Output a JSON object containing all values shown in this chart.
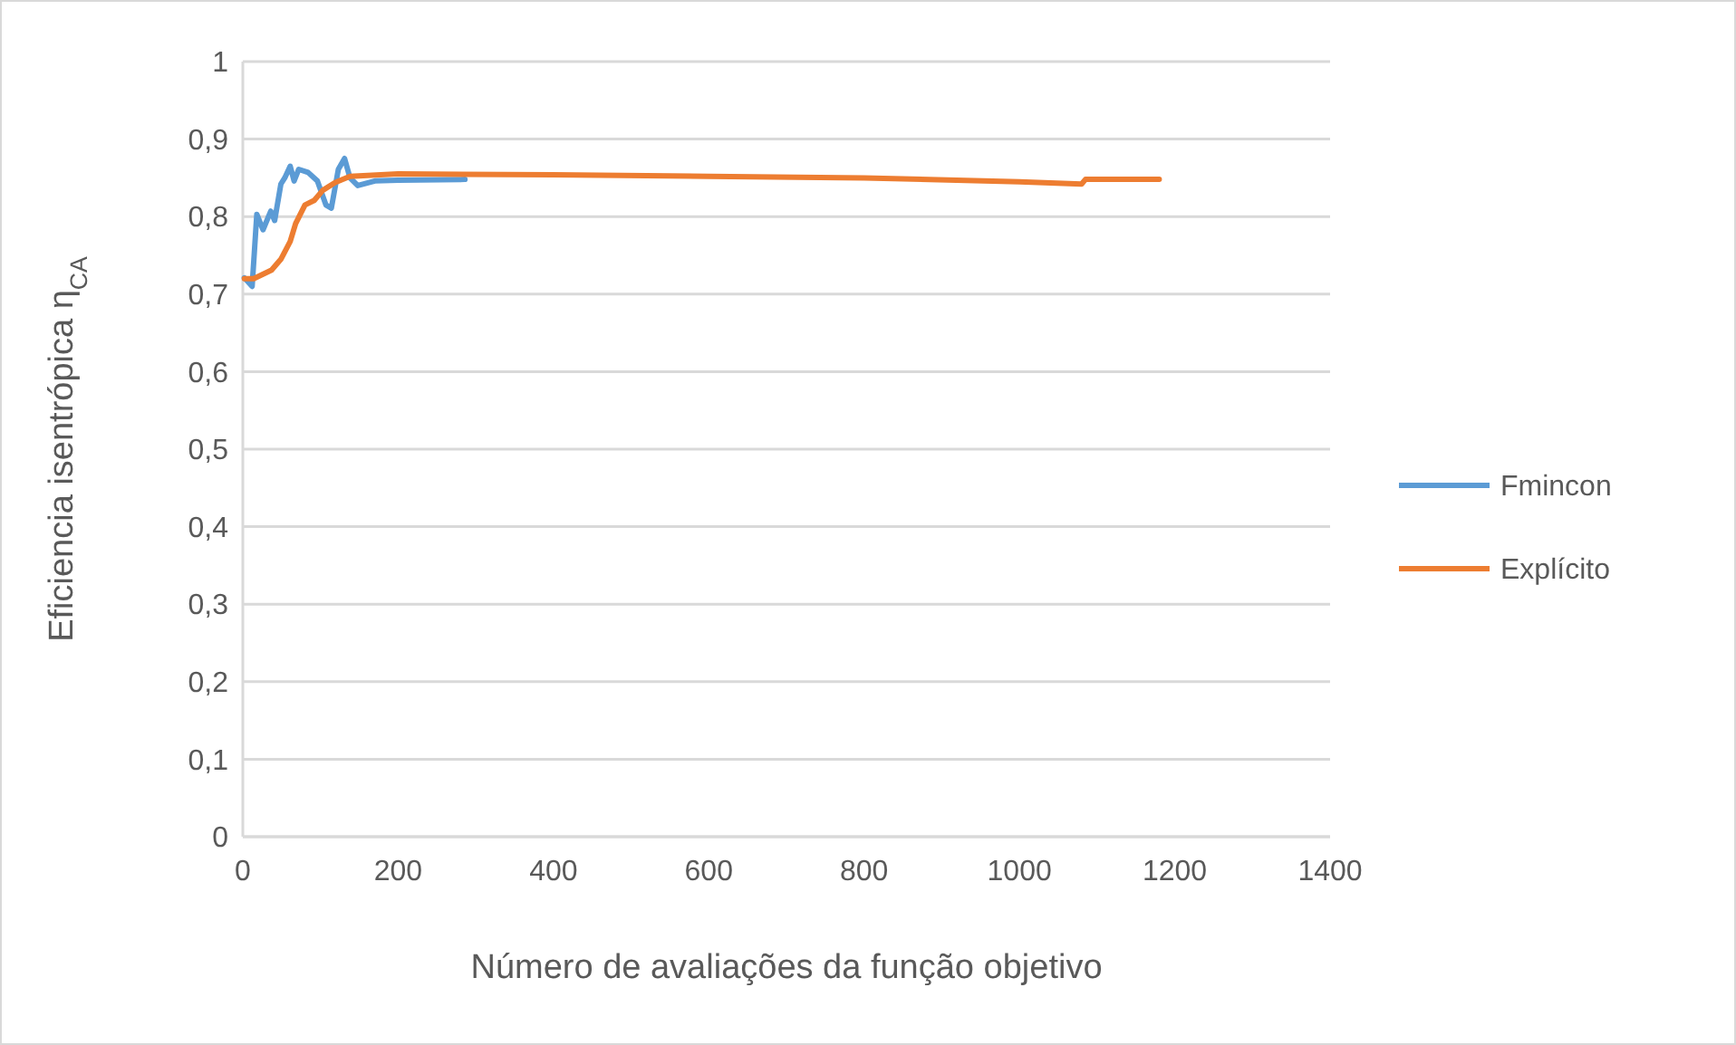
{
  "chart_data": {
    "type": "line",
    "xlabel": "Número de avaliações da função objetivo",
    "ylabel": "Eficiencia isentrópica  η$_{CA}$",
    "xlim": [
      0,
      1400
    ],
    "xticks": [
      0,
      200,
      400,
      600,
      800,
      1000,
      1200,
      1400
    ],
    "ylim": [
      0,
      1
    ],
    "yticks": [
      {
        "value": 0,
        "label": "0"
      },
      {
        "value": 0.1,
        "label": "0,1"
      },
      {
        "value": 0.2,
        "label": "0,2"
      },
      {
        "value": 0.3,
        "label": "0,3"
      },
      {
        "value": 0.4,
        "label": "0,4"
      },
      {
        "value": 0.5,
        "label": "0,5"
      },
      {
        "value": 0.6,
        "label": "0,6"
      },
      {
        "value": 0.7,
        "label": "0,7"
      },
      {
        "value": 0.8,
        "label": "0,8"
      },
      {
        "value": 0.9,
        "label": "0,9"
      },
      {
        "value": 1,
        "label": "1"
      }
    ],
    "grid": "y",
    "legend": "right",
    "marker": "none",
    "line_style": "solid",
    "series": [
      {
        "name": "Fmincon",
        "color": "#5b9bd5",
        "x": [
          2,
          12,
          18,
          26,
          36,
          41,
          49,
          54,
          61,
          66,
          72,
          84,
          96,
          107,
          114,
          123,
          131,
          138,
          148,
          170,
          200,
          286
        ],
        "values": [
          0.721,
          0.71,
          0.803,
          0.783,
          0.807,
          0.795,
          0.842,
          0.85,
          0.865,
          0.846,
          0.861,
          0.857,
          0.846,
          0.815,
          0.811,
          0.861,
          0.875,
          0.85,
          0.84,
          0.846,
          0.847,
          0.848
        ]
      },
      {
        "name": "Explícito",
        "color": "#ed7d31",
        "x": [
          2,
          14,
          37,
          49,
          61,
          68,
          80,
          92,
          103,
          119,
          138,
          200,
          400,
          600,
          800,
          1000,
          1080,
          1085,
          1180
        ],
        "values": [
          0.72,
          0.72,
          0.731,
          0.745,
          0.768,
          0.791,
          0.815,
          0.821,
          0.834,
          0.844,
          0.852,
          0.855,
          0.854,
          0.852,
          0.85,
          0.845,
          0.842,
          0.848,
          0.848
        ]
      }
    ]
  }
}
